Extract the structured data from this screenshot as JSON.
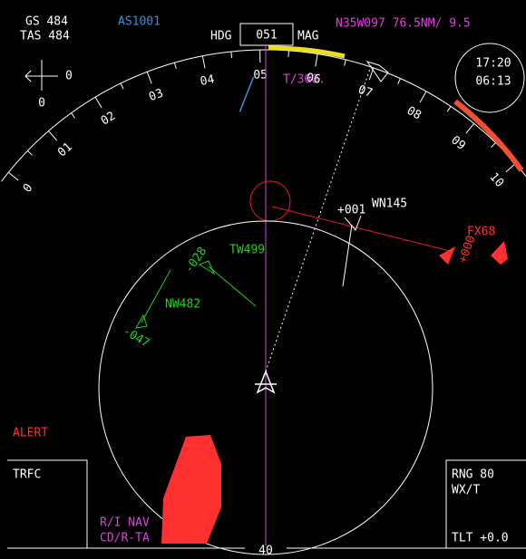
{
  "status": {
    "ground_speed": "GS 484",
    "true_airspeed": "TAS 484",
    "flight_id": "AS1001",
    "position": "N35W097 76.5NM/ 9.5",
    "track_note": "T/360."
  },
  "heading": {
    "label": "HDG",
    "value": "051",
    "reference": "MAG"
  },
  "clock": {
    "top": "17:20",
    "bottom": "06:13"
  },
  "wind": {
    "right": "0",
    "below": "0"
  },
  "compass": {
    "labels": [
      "0",
      "01",
      "02",
      "03",
      "04",
      "05",
      "06",
      "07",
      "08",
      "09",
      "10"
    ]
  },
  "traffic": [
    {
      "callsign": "WN145",
      "altitude": "+001"
    },
    {
      "callsign": "FX68",
      "altitude": "+000"
    },
    {
      "callsign": "TW499",
      "altitude": "-028"
    },
    {
      "callsign": "NW482",
      "altitude": "-047"
    }
  ],
  "alert": "ALERT",
  "left_panel": {
    "title": "TRFC",
    "lines": [
      "R/I NAV",
      "CD/R-TA"
    ]
  },
  "right_panel": {
    "range": "RNG 80",
    "mode": "WX/T",
    "tilt": "TLT  +0.0"
  },
  "range_ring": "40"
}
